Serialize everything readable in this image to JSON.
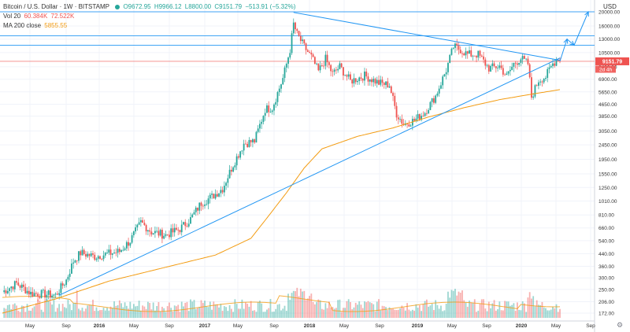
{
  "header": {
    "symbol": "Bitcoin / U.S. Dollar · 1W · BITSTAMP",
    "open": "O9672.95",
    "high": "H9966.12",
    "low": "L8800.00",
    "close": "C9151.79",
    "change": "−513.91 (−5.32%)",
    "vol_label": "Vol 20",
    "vol_value": "60.384K",
    "vol_ma": "72.522K",
    "ma_label": "MA 200 close",
    "ma_value": "5855.55",
    "currency": "USD"
  },
  "chart_data": {
    "type": "candlestick",
    "title": "Bitcoin / U.S. Dollar · 1W · BITSTAMP",
    "scale": "log",
    "y_ticks": [
      "20000.00",
      "16000.00",
      "13000.00",
      "10500.00",
      "8400.00",
      "6900.00",
      "5650.00",
      "4650.00",
      "3850.00",
      "3050.00",
      "2450.00",
      "1950.00",
      "1550.00",
      "1250.00",
      "1010.00",
      "810.00",
      "660.00",
      "540.00",
      "440.00",
      "360.00",
      "300.00",
      "250.00",
      "206.00",
      "172.00"
    ],
    "x_ticks": [
      "May",
      "Sep",
      "2016",
      "May",
      "Sep",
      "2017",
      "May",
      "Sep",
      "2018",
      "May",
      "Sep",
      "2019",
      "May",
      "Sep",
      "2020",
      "May",
      "Sep"
    ],
    "last_price_label": "9151.79",
    "countdown_label": "2d 4h",
    "anchors": [
      {
        "t": 0,
        "p": 240
      },
      {
        "t": 8,
        "p": 275
      },
      {
        "t": 16,
        "p": 235
      },
      {
        "t": 24,
        "p": 232
      },
      {
        "t": 30,
        "p": 228
      },
      {
        "t": 36,
        "p": 290
      },
      {
        "t": 40,
        "p": 390
      },
      {
        "t": 44,
        "p": 445
      },
      {
        "t": 52,
        "p": 420
      },
      {
        "t": 58,
        "p": 435
      },
      {
        "t": 66,
        "p": 455
      },
      {
        "t": 72,
        "p": 540
      },
      {
        "t": 78,
        "p": 720
      },
      {
        "t": 84,
        "p": 620
      },
      {
        "t": 92,
        "p": 590
      },
      {
        "t": 100,
        "p": 650
      },
      {
        "t": 106,
        "p": 760
      },
      {
        "t": 112,
        "p": 980
      },
      {
        "t": 118,
        "p": 1080
      },
      {
        "t": 124,
        "p": 1230
      },
      {
        "t": 130,
        "p": 1800
      },
      {
        "t": 136,
        "p": 2500
      },
      {
        "t": 142,
        "p": 2600
      },
      {
        "t": 148,
        "p": 4300
      },
      {
        "t": 152,
        "p": 4400
      },
      {
        "t": 158,
        "p": 7000
      },
      {
        "t": 162,
        "p": 11000
      },
      {
        "t": 164,
        "p": 16500
      },
      {
        "t": 166,
        "p": 14000
      },
      {
        "t": 170,
        "p": 11500
      },
      {
        "t": 174,
        "p": 9800
      },
      {
        "t": 178,
        "p": 7800
      },
      {
        "t": 182,
        "p": 9500
      },
      {
        "t": 186,
        "p": 7500
      },
      {
        "t": 190,
        "p": 8400
      },
      {
        "t": 196,
        "p": 6700
      },
      {
        "t": 204,
        "p": 7300
      },
      {
        "t": 212,
        "p": 6500
      },
      {
        "t": 218,
        "p": 6300
      },
      {
        "t": 222,
        "p": 4000
      },
      {
        "t": 226,
        "p": 3400
      },
      {
        "t": 232,
        "p": 3600
      },
      {
        "t": 238,
        "p": 4100
      },
      {
        "t": 244,
        "p": 5300
      },
      {
        "t": 250,
        "p": 8000
      },
      {
        "t": 254,
        "p": 11500
      },
      {
        "t": 258,
        "p": 11000
      },
      {
        "t": 262,
        "p": 10200
      },
      {
        "t": 268,
        "p": 10200
      },
      {
        "t": 274,
        "p": 8200
      },
      {
        "t": 280,
        "p": 8500
      },
      {
        "t": 284,
        "p": 7200
      },
      {
        "t": 288,
        "p": 8800
      },
      {
        "t": 292,
        "p": 9600
      },
      {
        "t": 296,
        "p": 8800
      },
      {
        "t": 298,
        "p": 5200
      },
      {
        "t": 302,
        "p": 6800
      },
      {
        "t": 306,
        "p": 7200
      },
      {
        "t": 310,
        "p": 8800
      },
      {
        "t": 313,
        "p": 9671
      },
      {
        "t": 314,
        "p": 9152
      }
    ],
    "ma_anchors": [
      {
        "t": 0,
        "p": 172
      },
      {
        "t": 30,
        "p": 215
      },
      {
        "t": 60,
        "p": 285
      },
      {
        "t": 90,
        "p": 350
      },
      {
        "t": 120,
        "p": 430
      },
      {
        "t": 140,
        "p": 560
      },
      {
        "t": 150,
        "p": 800
      },
      {
        "t": 160,
        "p": 1150
      },
      {
        "t": 170,
        "p": 1700
      },
      {
        "t": 180,
        "p": 2300
      },
      {
        "t": 200,
        "p": 2800
      },
      {
        "t": 220,
        "p": 3200
      },
      {
        "t": 240,
        "p": 3800
      },
      {
        "t": 260,
        "p": 4400
      },
      {
        "t": 280,
        "p": 5000
      },
      {
        "t": 300,
        "p": 5500
      },
      {
        "t": 314,
        "p": 5856
      }
    ],
    "horizontal_levels": [
      20000,
      13700,
      11800,
      9152
    ],
    "trendlines": [
      {
        "from": {
          "t": 164,
          "p": 19800
        },
        "to": {
          "t": 314,
          "p": 9300
        }
      },
      {
        "from": {
          "t": 32,
          "p": 228
        },
        "to": {
          "t": 314,
          "p": 9650
        }
      }
    ],
    "projection": [
      {
        "t": 314,
        "p": 9152
      },
      {
        "t": 318,
        "p": 13000
      },
      {
        "t": 322,
        "p": 11800
      },
      {
        "t": 330,
        "p": 20000
      }
    ],
    "colors": {
      "up": "#26a69a",
      "down": "#ef5350",
      "ma": "#f39c12",
      "trend": "#2196f3",
      "level": "#2196f3",
      "price": "#ef5350"
    }
  }
}
